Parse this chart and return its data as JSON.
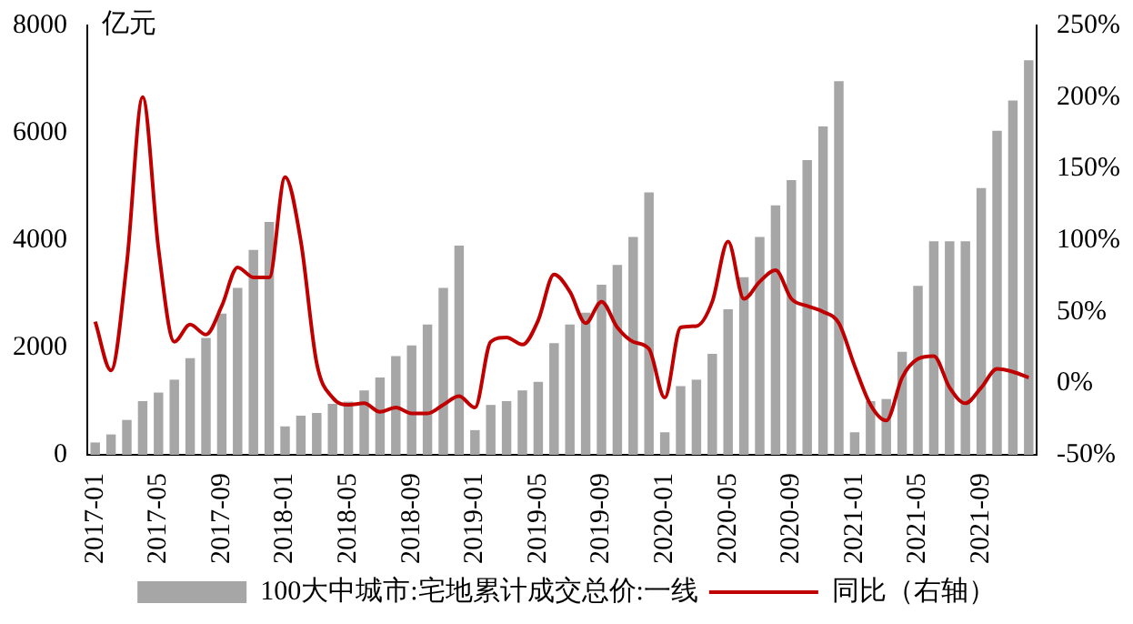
{
  "chart_data": {
    "type": "bar",
    "ylabel": "亿元",
    "categories": [
      "2017-01",
      null,
      null,
      null,
      "2017-05",
      null,
      null,
      null,
      "2017-09",
      null,
      null,
      null,
      "2018-01",
      null,
      null,
      null,
      "2018-05",
      null,
      null,
      null,
      "2018-09",
      null,
      null,
      null,
      "2019-01",
      null,
      null,
      null,
      "2019-05",
      null,
      null,
      null,
      "2019-09",
      null,
      null,
      null,
      "2020-01",
      null,
      null,
      null,
      "2020-05",
      null,
      null,
      null,
      "2020-09",
      null,
      null,
      null,
      "2021-01",
      null,
      null,
      null,
      "2021-05",
      null,
      null,
      null,
      "2021-09",
      null,
      null,
      null
    ],
    "series": [
      {
        "name": "100大中城市:宅地累计成交总价:一线",
        "color": "#a6a6a6",
        "values": [
          230,
          380,
          650,
          1000,
          1160,
          1400,
          1800,
          2180,
          2630,
          3110,
          3820,
          4340,
          530,
          730,
          780,
          950,
          990,
          1200,
          1440,
          1840,
          2040,
          2430,
          3110,
          3900,
          460,
          930,
          1000,
          1200,
          1360,
          2080,
          2430,
          2650,
          3170,
          3540,
          4060,
          4890,
          420,
          1280,
          1400,
          1880,
          2710,
          3310,
          4060,
          4650,
          5120,
          5490,
          6120,
          6960,
          420,
          1000,
          1040,
          1920,
          3150,
          3980,
          3980,
          3980,
          4970,
          6040,
          6600,
          7350
        ]
      },
      {
        "name": "同比（右轴）",
        "type": "line",
        "axis": "y2",
        "color": "#c00000",
        "values": [
          43,
          9,
          84,
          200,
          94,
          29,
          41,
          34,
          54,
          81,
          74,
          74,
          144,
          99,
          14,
          -10,
          -15,
          -14,
          -20,
          -17,
          -21,
          -21,
          -15,
          -9,
          -17,
          29,
          32,
          27,
          44,
          76,
          64,
          42,
          57,
          39,
          29,
          24,
          -10,
          39,
          40,
          57,
          99,
          59,
          71,
          79,
          59,
          54,
          50,
          42,
          12,
          -15,
          -26,
          4,
          17,
          19,
          -3,
          -14,
          -3,
          10,
          8,
          4
        ]
      }
    ],
    "ylim": [
      0,
      8000
    ],
    "yticks": [
      0,
      2000,
      4000,
      6000,
      8000
    ],
    "y2lim": [
      -50,
      250
    ],
    "y2ticks": [
      {
        "value": -50,
        "label": "-50%"
      },
      {
        "value": 0,
        "label": "0%"
      },
      {
        "value": 50,
        "label": "50%"
      },
      {
        "value": 100,
        "label": "100%"
      },
      {
        "value": 150,
        "label": "150%"
      },
      {
        "value": 200,
        "label": "200%"
      },
      {
        "value": 250,
        "label": "250%"
      }
    ],
    "grid": false,
    "legend": "bottom",
    "line_style": "solid",
    "marker": "none"
  }
}
